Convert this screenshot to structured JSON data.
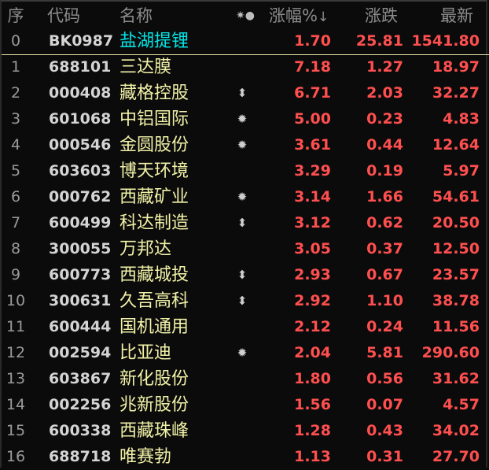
{
  "header": {
    "index": "序",
    "code": "代码",
    "name": "名称",
    "flags": "✷●",
    "pct": "涨幅%",
    "sort_arrow": "↓",
    "change": "涨跌",
    "last": "最新"
  },
  "colors": {
    "up": "#ff4f4f",
    "sector_name": "#00e5e5",
    "stock_name": "#f2f2a8",
    "background": "#0b0b0b"
  },
  "rows": [
    {
      "index": "0",
      "code": "BK0987",
      "name": "盐湖提锂",
      "flag": "",
      "pct": "1.70",
      "change": "25.81",
      "last": "1541.80"
    },
    {
      "index": "1",
      "code": "688101",
      "name": "三达膜",
      "flag": "",
      "pct": "7.18",
      "change": "1.27",
      "last": "18.97"
    },
    {
      "index": "2",
      "code": "000408",
      "name": "藏格控股",
      "flag": "⬍",
      "pct": "6.71",
      "change": "2.03",
      "last": "32.27"
    },
    {
      "index": "3",
      "code": "601068",
      "name": "中铝国际",
      "flag": "✹",
      "pct": "5.00",
      "change": "0.23",
      "last": "4.83"
    },
    {
      "index": "4",
      "code": "000546",
      "name": "金圆股份",
      "flag": "✹",
      "pct": "3.61",
      "change": "0.44",
      "last": "12.64"
    },
    {
      "index": "5",
      "code": "603603",
      "name": "博天环境",
      "flag": "",
      "pct": "3.29",
      "change": "0.19",
      "last": "5.97"
    },
    {
      "index": "6",
      "code": "000762",
      "name": "西藏矿业",
      "flag": "✹",
      "pct": "3.14",
      "change": "1.66",
      "last": "54.61"
    },
    {
      "index": "7",
      "code": "600499",
      "name": "科达制造",
      "flag": "⬍",
      "pct": "3.12",
      "change": "0.62",
      "last": "20.50"
    },
    {
      "index": "8",
      "code": "300055",
      "name": "万邦达",
      "flag": "",
      "pct": "3.05",
      "change": "0.37",
      "last": "12.50"
    },
    {
      "index": "9",
      "code": "600773",
      "name": "西藏城投",
      "flag": "⬍",
      "pct": "2.93",
      "change": "0.67",
      "last": "23.57"
    },
    {
      "index": "10",
      "code": "300631",
      "name": "久吾高科",
      "flag": "⬍",
      "pct": "2.92",
      "change": "1.10",
      "last": "38.78"
    },
    {
      "index": "11",
      "code": "600444",
      "name": "国机通用",
      "flag": "",
      "pct": "2.12",
      "change": "0.24",
      "last": "11.56"
    },
    {
      "index": "12",
      "code": "002594",
      "name": "比亚迪",
      "flag": "✹",
      "pct": "2.04",
      "change": "5.81",
      "last": "290.60"
    },
    {
      "index": "13",
      "code": "603867",
      "name": "新化股份",
      "flag": "",
      "pct": "1.80",
      "change": "0.56",
      "last": "31.62"
    },
    {
      "index": "14",
      "code": "002256",
      "name": "兆新股份",
      "flag": "",
      "pct": "1.56",
      "change": "0.07",
      "last": "4.57"
    },
    {
      "index": "15",
      "code": "600338",
      "name": "西藏珠峰",
      "flag": "",
      "pct": "1.28",
      "change": "0.43",
      "last": "34.02"
    },
    {
      "index": "16",
      "code": "688718",
      "name": "唯赛勃",
      "flag": "",
      "pct": "1.13",
      "change": "0.31",
      "last": "27.70"
    }
  ]
}
